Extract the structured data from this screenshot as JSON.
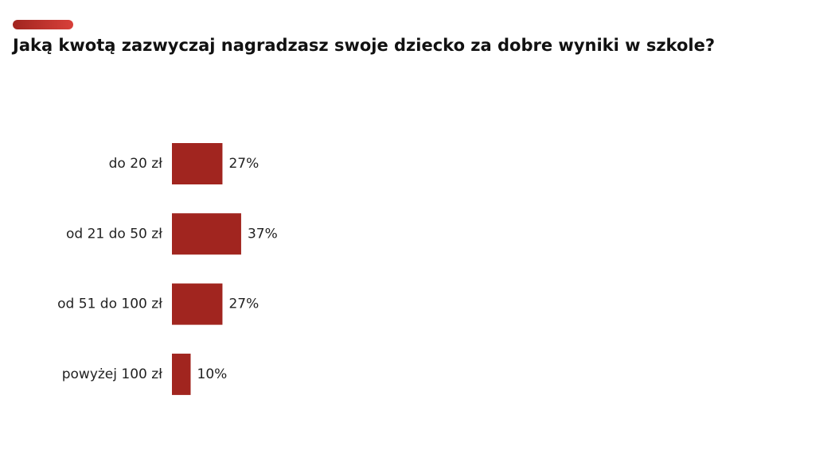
{
  "chart_data": {
    "type": "bar",
    "orientation": "horizontal",
    "title": "Jaką kwotą zazwyczaj nagradzasz swoje dziecko za dobre wyniki w szkole?",
    "categories": [
      "do 20 zł",
      "od 21 do 50 zł",
      "od 51 do 100 zł",
      "powyżej 100 zł"
    ],
    "values": [
      27,
      37,
      27,
      10
    ],
    "value_labels": [
      "27%",
      "37%",
      "27%",
      "10%"
    ],
    "color": "#a1251f"
  }
}
